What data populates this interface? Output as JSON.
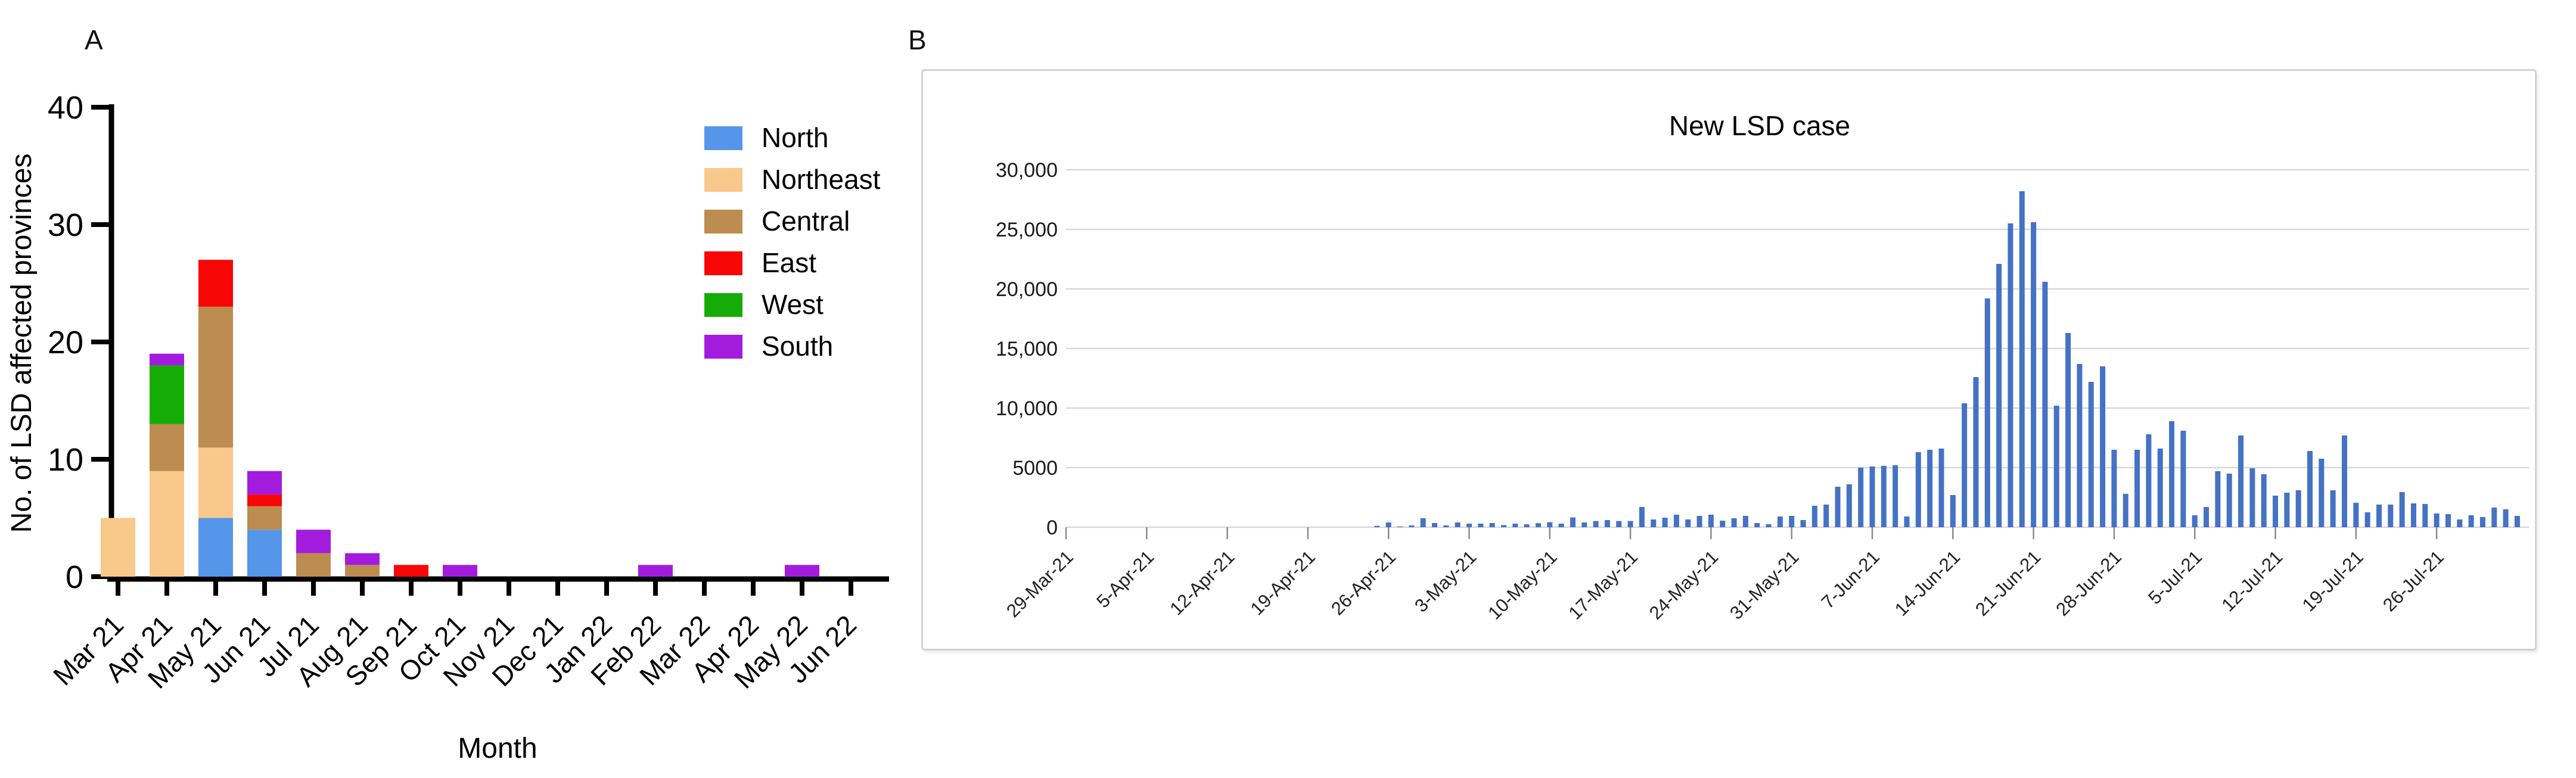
{
  "chart_data": [
    {
      "panel_label": "A",
      "type": "bar",
      "stacked": true,
      "title": "",
      "xlabel": "Month",
      "ylabel": "No. of LSD affected provinces",
      "ylim": [
        0,
        40
      ],
      "y_ticks": [
        0,
        10,
        20,
        30,
        40
      ],
      "grid": false,
      "legend_position": "top-right-inside",
      "categories": [
        "Mar 21",
        "Apr 21",
        "May 21",
        "Jun 21",
        "Jul 21",
        "Aug 21",
        "Sep 21",
        "Oct 21",
        "Nov 21",
        "Dec 21",
        "Jan 22",
        "Feb 22",
        "Mar 22",
        "Apr 22",
        "May 22",
        "Jun 22"
      ],
      "series": [
        {
          "name": "North",
          "color": "#5596EB",
          "values": [
            0,
            0,
            5,
            4,
            0,
            0,
            0,
            0,
            0,
            0,
            0,
            0,
            0,
            0,
            0,
            0
          ]
        },
        {
          "name": "Northeast",
          "color": "#F9C88B",
          "values": [
            5,
            9,
            6,
            0,
            0,
            0,
            0,
            0,
            0,
            0,
            0,
            0,
            0,
            0,
            0,
            0
          ]
        },
        {
          "name": "Central",
          "color": "#BD8C50",
          "values": [
            0,
            4,
            12,
            2,
            2,
            1,
            0,
            0,
            0,
            0,
            0,
            0,
            0,
            0,
            0,
            0
          ]
        },
        {
          "name": "East",
          "color": "#F90606",
          "values": [
            0,
            0,
            4,
            1,
            0,
            0,
            1,
            0,
            0,
            0,
            0,
            0,
            0,
            0,
            0,
            0
          ]
        },
        {
          "name": "West",
          "color": "#16AC07",
          "values": [
            0,
            5,
            0,
            0,
            0,
            0,
            0,
            0,
            0,
            0,
            0,
            0,
            0,
            0,
            0,
            0
          ]
        },
        {
          "name": "South",
          "color": "#A31CDE",
          "values": [
            0,
            1,
            0,
            2,
            2,
            1,
            0,
            1,
            0,
            0,
            0,
            1,
            0,
            0,
            1,
            0
          ]
        }
      ]
    },
    {
      "panel_label": "B",
      "type": "bar",
      "title": "New LSD case",
      "bar_color": "#4472C4",
      "grid": true,
      "gridline_color": "#d8d8d8",
      "ylim": [
        0,
        30000
      ],
      "y_tick_labels": [
        "0",
        "5000",
        "10,000",
        "15,000",
        "20,000",
        "25,000",
        "30,000"
      ],
      "x_tick_interval_days": 7,
      "x_tick_labels": [
        "29-Mar-21",
        "5-Apr-21",
        "12-Apr-21",
        "19-Apr-21",
        "26-Apr-21",
        "3-May-21",
        "10-May-21",
        "17-May-21",
        "24-May-21",
        "31-May-21",
        "7-Jun-21",
        "14-Jun-21",
        "21-Jun-21",
        "28-Jun-21",
        "5-Jul-21",
        "12-Jul-21",
        "19-Jul-21",
        "26-Jul-21"
      ],
      "start_date": "29-Mar-21",
      "end_date": "2-Aug-21",
      "daily_values": [
        0,
        0,
        0,
        0,
        0,
        0,
        0,
        0,
        0,
        0,
        0,
        0,
        0,
        0,
        0,
        0,
        0,
        0,
        0,
        0,
        0,
        0,
        0,
        0,
        0,
        0,
        0,
        120,
        400,
        60,
        150,
        750,
        350,
        150,
        400,
        300,
        300,
        350,
        180,
        300,
        240,
        340,
        420,
        300,
        820,
        400,
        520,
        600,
        520,
        520,
        1700,
        650,
        800,
        1050,
        650,
        950,
        1050,
        550,
        750,
        950,
        350,
        250,
        900,
        950,
        600,
        1800,
        1900,
        3400,
        3600,
        5000,
        5100,
        5150,
        5200,
        900,
        6300,
        6500,
        6600,
        2700,
        10400,
        12600,
        19200,
        22100,
        25500,
        28200,
        25600,
        20600,
        10200,
        16300,
        13700,
        12200,
        13500,
        6500,
        2800,
        6500,
        7800,
        6600,
        8900,
        8100,
        1000,
        1700,
        4700,
        4500,
        7700,
        4950,
        4450,
        2650,
        2900,
        3100,
        6400,
        5750,
        3100,
        7700,
        2050,
        1250,
        1900,
        1900,
        2950,
        2000,
        1950,
        1150,
        1100,
        650,
        1000,
        850,
        1650,
        1500,
        950
      ]
    }
  ]
}
